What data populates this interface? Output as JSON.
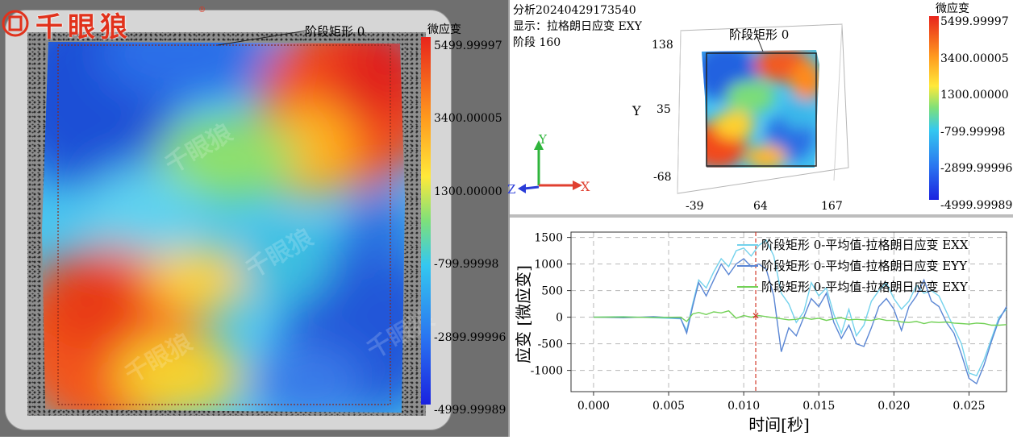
{
  "logo": {
    "text": "千眼狼",
    "reg": "®"
  },
  "left_view": {
    "roi_label": "阶段矩形 0",
    "colorbar": {
      "title": "微应变",
      "ticks": [
        "5499.99997",
        "3400.00005",
        "1300.00000",
        "-799.99998",
        "-2899.99996",
        "-4999.99989"
      ]
    },
    "watermark": "千眼狼"
  },
  "right_view": {
    "info": {
      "analysis": "分析20240429173540",
      "display": "显示：拉格朗日应变 EXY",
      "stage": "阶段 160"
    },
    "roi_label": "阶段矩形 0",
    "y_axis_label": "Y",
    "y_ticks": [
      "138",
      "35",
      "-68"
    ],
    "x_ticks": [
      "-39",
      "64",
      "167"
    ],
    "triad": {
      "x": "X",
      "y": "Y",
      "z": "Z"
    },
    "colorbar": {
      "title": "微应变",
      "ticks": [
        "5499.99997",
        "3400.00005",
        "1300.00000",
        "-799.99998",
        "-2899.99996",
        "-4999.99989"
      ]
    }
  },
  "chart_data": {
    "type": "line",
    "xlabel": "时间[秒]",
    "ylabel": "应变 [微应变]",
    "xlim": [
      -0.0015,
      0.0275
    ],
    "ylim": [
      -1400,
      1600
    ],
    "x_ticks": [
      "0.000",
      "0.005",
      "0.010",
      "0.015",
      "0.020",
      "0.025"
    ],
    "y_ticks": [
      "1500",
      "1000",
      "500",
      "0",
      "-500",
      "-1000"
    ],
    "grid": true,
    "legend_position": "top-right",
    "marker_time": 0.0108,
    "series": [
      {
        "name": "阶段矩形 0-平均值-拉格朗日应变 EXX",
        "color": "#73d2ec",
        "x": [
          0,
          0.002,
          0.004,
          0.0058,
          0.0062,
          0.0066,
          0.007,
          0.0075,
          0.008,
          0.0085,
          0.009,
          0.0095,
          0.01,
          0.0105,
          0.011,
          0.0115,
          0.012,
          0.0125,
          0.013,
          0.0135,
          0.014,
          0.0145,
          0.015,
          0.0155,
          0.016,
          0.0165,
          0.017,
          0.0175,
          0.018,
          0.0185,
          0.019,
          0.0195,
          0.02,
          0.0205,
          0.021,
          0.0215,
          0.022,
          0.0225,
          0.023,
          0.0235,
          0.024,
          0.0245,
          0.025,
          0.0255,
          0.026,
          0.0265,
          0.027,
          0.0275
        ],
        "y": [
          0,
          10,
          -10,
          -30,
          -250,
          250,
          700,
          550,
          850,
          1100,
          950,
          1250,
          1300,
          1150,
          1350,
          1450,
          1150,
          450,
          250,
          -100,
          100,
          650,
          400,
          550,
          50,
          -300,
          150,
          -350,
          -150,
          300,
          500,
          650,
          350,
          150,
          300,
          600,
          450,
          500,
          400,
          100,
          -200,
          -500,
          -1050,
          -1100,
          -800,
          -400,
          0,
          150
        ]
      },
      {
        "name": "阶段矩形 0-平均值-拉格朗日应变 EYY",
        "color": "#5a86d4",
        "x": [
          0,
          0.002,
          0.004,
          0.0058,
          0.0062,
          0.0066,
          0.007,
          0.0075,
          0.008,
          0.0085,
          0.009,
          0.0095,
          0.01,
          0.0105,
          0.011,
          0.0115,
          0.012,
          0.0125,
          0.013,
          0.0135,
          0.014,
          0.0145,
          0.015,
          0.0155,
          0.016,
          0.0165,
          0.017,
          0.0175,
          0.018,
          0.0185,
          0.019,
          0.0195,
          0.02,
          0.0205,
          0.021,
          0.0215,
          0.022,
          0.0225,
          0.023,
          0.0235,
          0.024,
          0.0245,
          0.025,
          0.0255,
          0.026,
          0.0265,
          0.027,
          0.0275
        ],
        "y": [
          0,
          -10,
          10,
          -20,
          -300,
          200,
          650,
          400,
          700,
          1000,
          800,
          1000,
          1100,
          950,
          1000,
          900,
          400,
          -650,
          -200,
          -350,
          0,
          350,
          200,
          450,
          -100,
          -400,
          -150,
          -500,
          -550,
          -200,
          200,
          350,
          150,
          -250,
          200,
          400,
          700,
          300,
          200,
          -100,
          -300,
          -700,
          -1150,
          -1250,
          -900,
          -450,
          -50,
          200
        ]
      },
      {
        "name": "阶段矩形 0-平均值-拉格朗日应变 EXY",
        "color": "#72d156",
        "x": [
          0,
          0.002,
          0.004,
          0.0058,
          0.0062,
          0.0066,
          0.007,
          0.0075,
          0.008,
          0.0085,
          0.009,
          0.0095,
          0.01,
          0.0105,
          0.011,
          0.0115,
          0.012,
          0.0125,
          0.013,
          0.0135,
          0.014,
          0.0145,
          0.015,
          0.0155,
          0.016,
          0.0165,
          0.017,
          0.0175,
          0.018,
          0.0185,
          0.019,
          0.0195,
          0.02,
          0.0205,
          0.021,
          0.0215,
          0.022,
          0.0225,
          0.023,
          0.0235,
          0.024,
          0.0245,
          0.025,
          0.0255,
          0.026,
          0.0265,
          0.027,
          0.0275
        ],
        "y": [
          0,
          5,
          -5,
          0,
          -80,
          60,
          90,
          50,
          100,
          80,
          120,
          -20,
          30,
          0,
          30,
          10,
          -10,
          -30,
          -50,
          -40,
          -10,
          -40,
          -20,
          -60,
          -30,
          -10,
          -50,
          -40,
          -50,
          -60,
          -30,
          -60,
          -60,
          -90,
          -100,
          -80,
          -120,
          -90,
          -100,
          -90,
          -110,
          -120,
          -130,
          -110,
          -120,
          -150,
          -150,
          -140
        ]
      }
    ]
  }
}
